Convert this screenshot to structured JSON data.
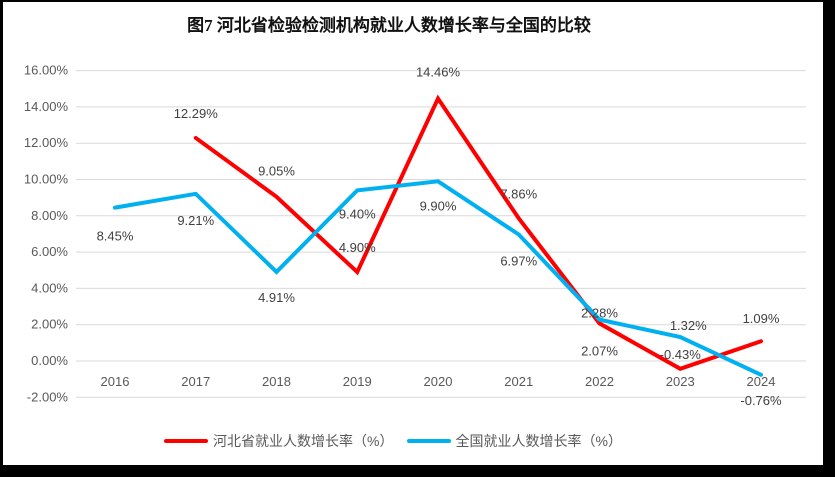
{
  "colors": {
    "frame_border": "#000000",
    "grid": "#d9d9d9",
    "axis_text": "#595959",
    "data_label_text": "#404040",
    "hebei_line": "#ff0000",
    "national_line": "#00b0f0"
  },
  "chart_data": {
    "type": "line",
    "title": "图7 河北省检验检测机构就业人数增长率与全国的比较",
    "categories": [
      "2016",
      "2017",
      "2018",
      "2019",
      "2020",
      "2021",
      "2022",
      "2023",
      "2024"
    ],
    "series": [
      {
        "name": "河北省就业人数增长率（%）",
        "color": "#ff0000",
        "values": [
          null,
          12.29,
          9.05,
          4.9,
          14.46,
          7.86,
          2.07,
          -0.43,
          1.09
        ]
      },
      {
        "name": "全国就业人数增长率（%）",
        "color": "#00b0f0",
        "values": [
          8.45,
          9.21,
          4.91,
          9.4,
          9.9,
          6.97,
          2.28,
          1.32,
          -0.76
        ]
      }
    ],
    "xlabel": "",
    "ylabel": "",
    "ylim": [
      -2,
      16
    ],
    "ytick_step": 2,
    "ytick_format": "0.00%",
    "grid": true,
    "legend_position": "bottom",
    "data_labels_visible": true
  }
}
